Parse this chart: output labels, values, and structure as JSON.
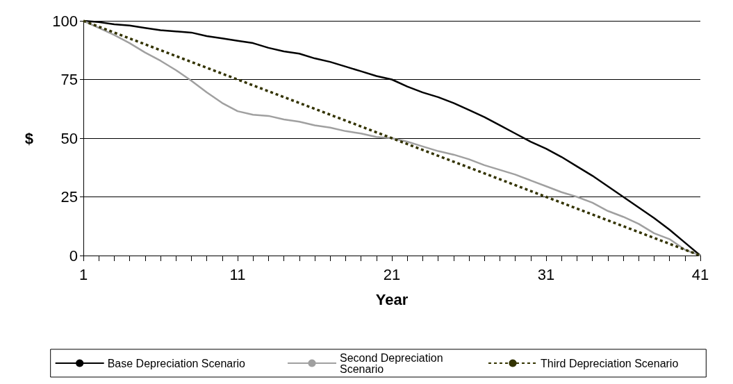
{
  "chart_data": {
    "type": "line",
    "xlabel": "Year",
    "ylabel": "$",
    "categories": [
      "1",
      null,
      null,
      null,
      null,
      null,
      null,
      null,
      null,
      null,
      "11",
      null,
      null,
      null,
      null,
      null,
      null,
      null,
      null,
      null,
      "21",
      null,
      null,
      null,
      null,
      null,
      null,
      null,
      null,
      null,
      "31",
      null,
      null,
      null,
      null,
      null,
      null,
      null,
      null,
      null,
      "41"
    ],
    "ylim": [
      0,
      100
    ],
    "yticks": [
      0,
      25,
      50,
      75,
      100
    ],
    "grid": "y",
    "legend": "bottom",
    "marker": "none",
    "series": [
      {
        "name": "Base Depreciation Scenario",
        "color": "#000000",
        "line_style": "solid",
        "values": [
          100,
          99.5,
          98.5,
          98,
          97,
          96,
          95.5,
          95,
          93.5,
          92.5,
          91.5,
          90.5,
          88.5,
          87,
          86,
          84,
          82.5,
          80.5,
          78.5,
          76.5,
          75,
          72,
          69.5,
          67.5,
          65,
          62,
          59,
          55.5,
          52,
          48.5,
          45.5,
          42,
          38,
          34,
          29.5,
          25,
          20.5,
          16,
          11,
          5.5,
          0
        ]
      },
      {
        "name": "Second Depreciation Scenario",
        "color": "#a0a0a0",
        "line_style": "solid",
        "values": [
          100,
          97,
          94,
          90.5,
          86.5,
          83,
          79,
          74.5,
          69.5,
          65,
          61.5,
          60,
          59.5,
          58,
          57,
          55.5,
          54.5,
          53,
          52,
          50.5,
          50,
          48.5,
          46.5,
          44.5,
          43,
          41,
          38.5,
          36.5,
          34.5,
          32,
          29.5,
          27,
          25,
          22.5,
          19,
          16.5,
          13.5,
          9.5,
          7,
          2.5,
          0
        ]
      },
      {
        "name": "Third Depreciation Scenario",
        "color": "#333300",
        "line_style": "dashed",
        "values": [
          100,
          97.5,
          95,
          92.5,
          90,
          87.5,
          85,
          82.5,
          80,
          77.5,
          75,
          72.5,
          70,
          67.5,
          65,
          62.5,
          60,
          57.5,
          55,
          52.5,
          50,
          47.5,
          45,
          42.5,
          40,
          37.5,
          35,
          32.5,
          30,
          27.5,
          25,
          22.5,
          20,
          17.5,
          15,
          12.5,
          10,
          7.5,
          5,
          2.5,
          0
        ]
      }
    ]
  }
}
